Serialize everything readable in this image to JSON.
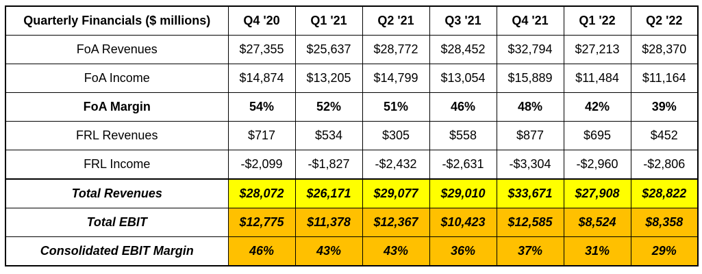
{
  "table": {
    "header_label": "Quarterly Financials ($ millions)",
    "quarters": [
      "Q4 '20",
      "Q1 '21",
      "Q2 '21",
      "Q3 '21",
      "Q4 '21",
      "Q1 '22",
      "Q2 '22"
    ],
    "rows": [
      {
        "label": "FoA Revenues",
        "values": [
          "$27,355",
          "$25,637",
          "$28,772",
          "$28,452",
          "$32,794",
          "$27,213",
          "$28,370"
        ]
      },
      {
        "label": "FoA Income",
        "values": [
          "$14,874",
          "$13,205",
          "$14,799",
          "$13,054",
          "$15,889",
          "$11,484",
          "$11,164"
        ]
      },
      {
        "label": "FoA Margin",
        "values": [
          "54%",
          "52%",
          "51%",
          "46%",
          "48%",
          "42%",
          "39%"
        ]
      },
      {
        "label": "FRL Revenues",
        "values": [
          "$717",
          "$534",
          "$305",
          "$558",
          "$877",
          "$695",
          "$452"
        ]
      },
      {
        "label": "FRL Income",
        "values": [
          "-$2,099",
          "-$1,827",
          "-$2,432",
          "-$2,631",
          "-$3,304",
          "-$2,960",
          "-$2,806"
        ]
      },
      {
        "label": "Total Revenues",
        "values": [
          "$28,072",
          "$26,171",
          "$29,077",
          "$29,010",
          "$33,671",
          "$27,908",
          "$28,822"
        ]
      },
      {
        "label": "Total EBIT",
        "values": [
          "$12,775",
          "$11,378",
          "$12,367",
          "$10,423",
          "$12,585",
          "$8,524",
          "$8,358"
        ]
      },
      {
        "label": "Consolidated EBIT Margin",
        "values": [
          "46%",
          "43%",
          "43%",
          "36%",
          "37%",
          "31%",
          "29%"
        ]
      }
    ]
  },
  "colors": {
    "highlight_yellow": "#ffff00",
    "highlight_orange": "#ffc000"
  }
}
